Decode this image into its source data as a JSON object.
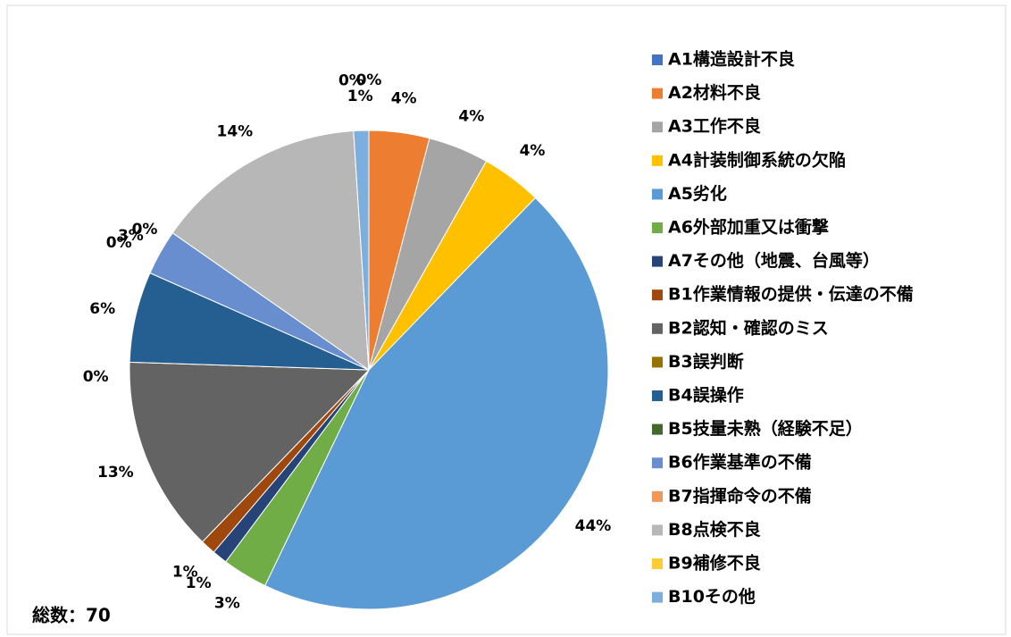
{
  "chart_data": {
    "type": "pie",
    "categories": [
      "A1構造設計不良",
      "A2材料不良",
      "A3工作不良",
      "A4計装制御系統の欠陥",
      "A5劣化",
      "A6外部加重又は衝撃",
      "A7その他（地震、台風等）",
      "B1作業情報の提供・伝達の不備",
      "B2認知・確認のミス",
      "B3誤判断",
      "B4誤操作",
      "B5技量未熟（経験不足）",
      "B6作業基準の不備",
      "B7指揮命令の不備",
      "B8点検不良",
      "B9補修不良",
      "B10その他"
    ],
    "values": [
      0,
      4,
      4,
      4,
      44,
      3,
      1,
      1,
      13,
      0,
      6,
      0,
      3,
      0,
      14,
      0,
      1
    ],
    "value_labels": [
      "0%",
      "4%",
      "4%",
      "4%",
      "44%",
      "3%",
      "1%",
      "1%",
      "13%",
      "0%",
      "6%",
      "0%",
      "3%",
      "0%",
      "14%",
      "0%",
      "1%"
    ],
    "colors": [
      "#4472c4",
      "#ed7d31",
      "#a5a5a5",
      "#ffc000",
      "#5b9bd5",
      "#70ad47",
      "#264478",
      "#9e480e",
      "#636363",
      "#997300",
      "#255e91",
      "#43682b",
      "#698ed0",
      "#f1975a",
      "#b7b7b7",
      "#ffcd33",
      "#7cafdd"
    ],
    "annotation": "総数：70"
  }
}
